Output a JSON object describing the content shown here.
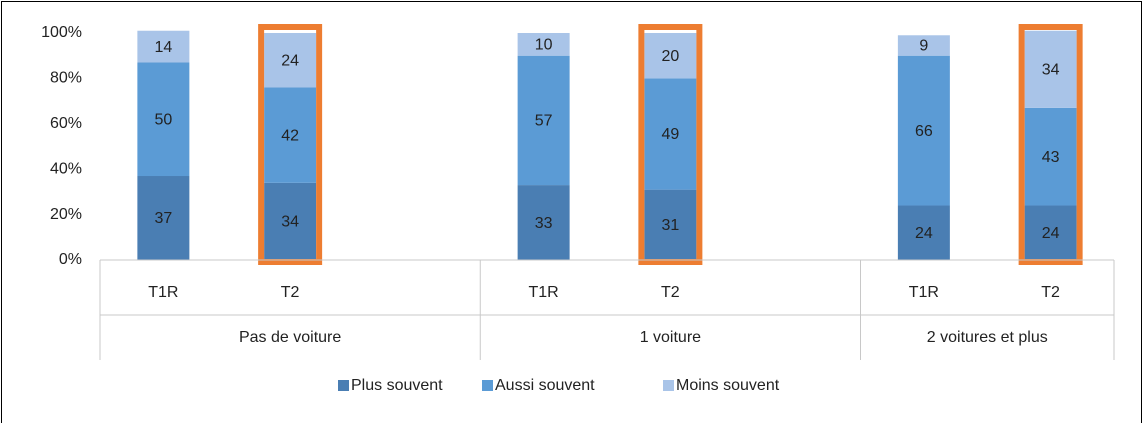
{
  "chart_data": {
    "type": "stacked_bar",
    "categories": [
      "T1R",
      "T2",
      null,
      "T1R",
      "T2",
      null,
      "T1R",
      "T2"
    ],
    "groups": [
      {
        "label": "Pas de voiture",
        "size": 3
      },
      {
        "label": "1 voiture",
        "size": 3
      },
      {
        "label": "2 voitures et plus",
        "size": 2
      }
    ],
    "series": [
      {
        "name": "Plus souvent",
        "color": "#4a7eb3",
        "values": [
          37,
          34,
          null,
          33,
          31,
          null,
          24,
          24
        ]
      },
      {
        "name": "Aussi souvent",
        "color": "#5b9bd5",
        "values": [
          50,
          42,
          null,
          57,
          49,
          null,
          66,
          43
        ]
      },
      {
        "name": "Moins souvent",
        "color": "#a9c4e8",
        "values": [
          14,
          24,
          null,
          10,
          20,
          null,
          9,
          34
        ]
      }
    ],
    "ylim": [
      0,
      100
    ],
    "yticks": [
      {
        "value": 0,
        "label": "0%"
      },
      {
        "value": 20,
        "label": "20%"
      },
      {
        "value": 40,
        "label": "40%"
      },
      {
        "value": 60,
        "label": "60%"
      },
      {
        "value": 80,
        "label": "80%"
      },
      {
        "value": 100,
        "label": "100%"
      }
    ],
    "grid": false,
    "legend": "bottom",
    "highlighted": [
      false,
      true,
      false,
      false,
      true,
      false,
      false,
      true
    ],
    "highlight_color": "#ed7d31"
  }
}
